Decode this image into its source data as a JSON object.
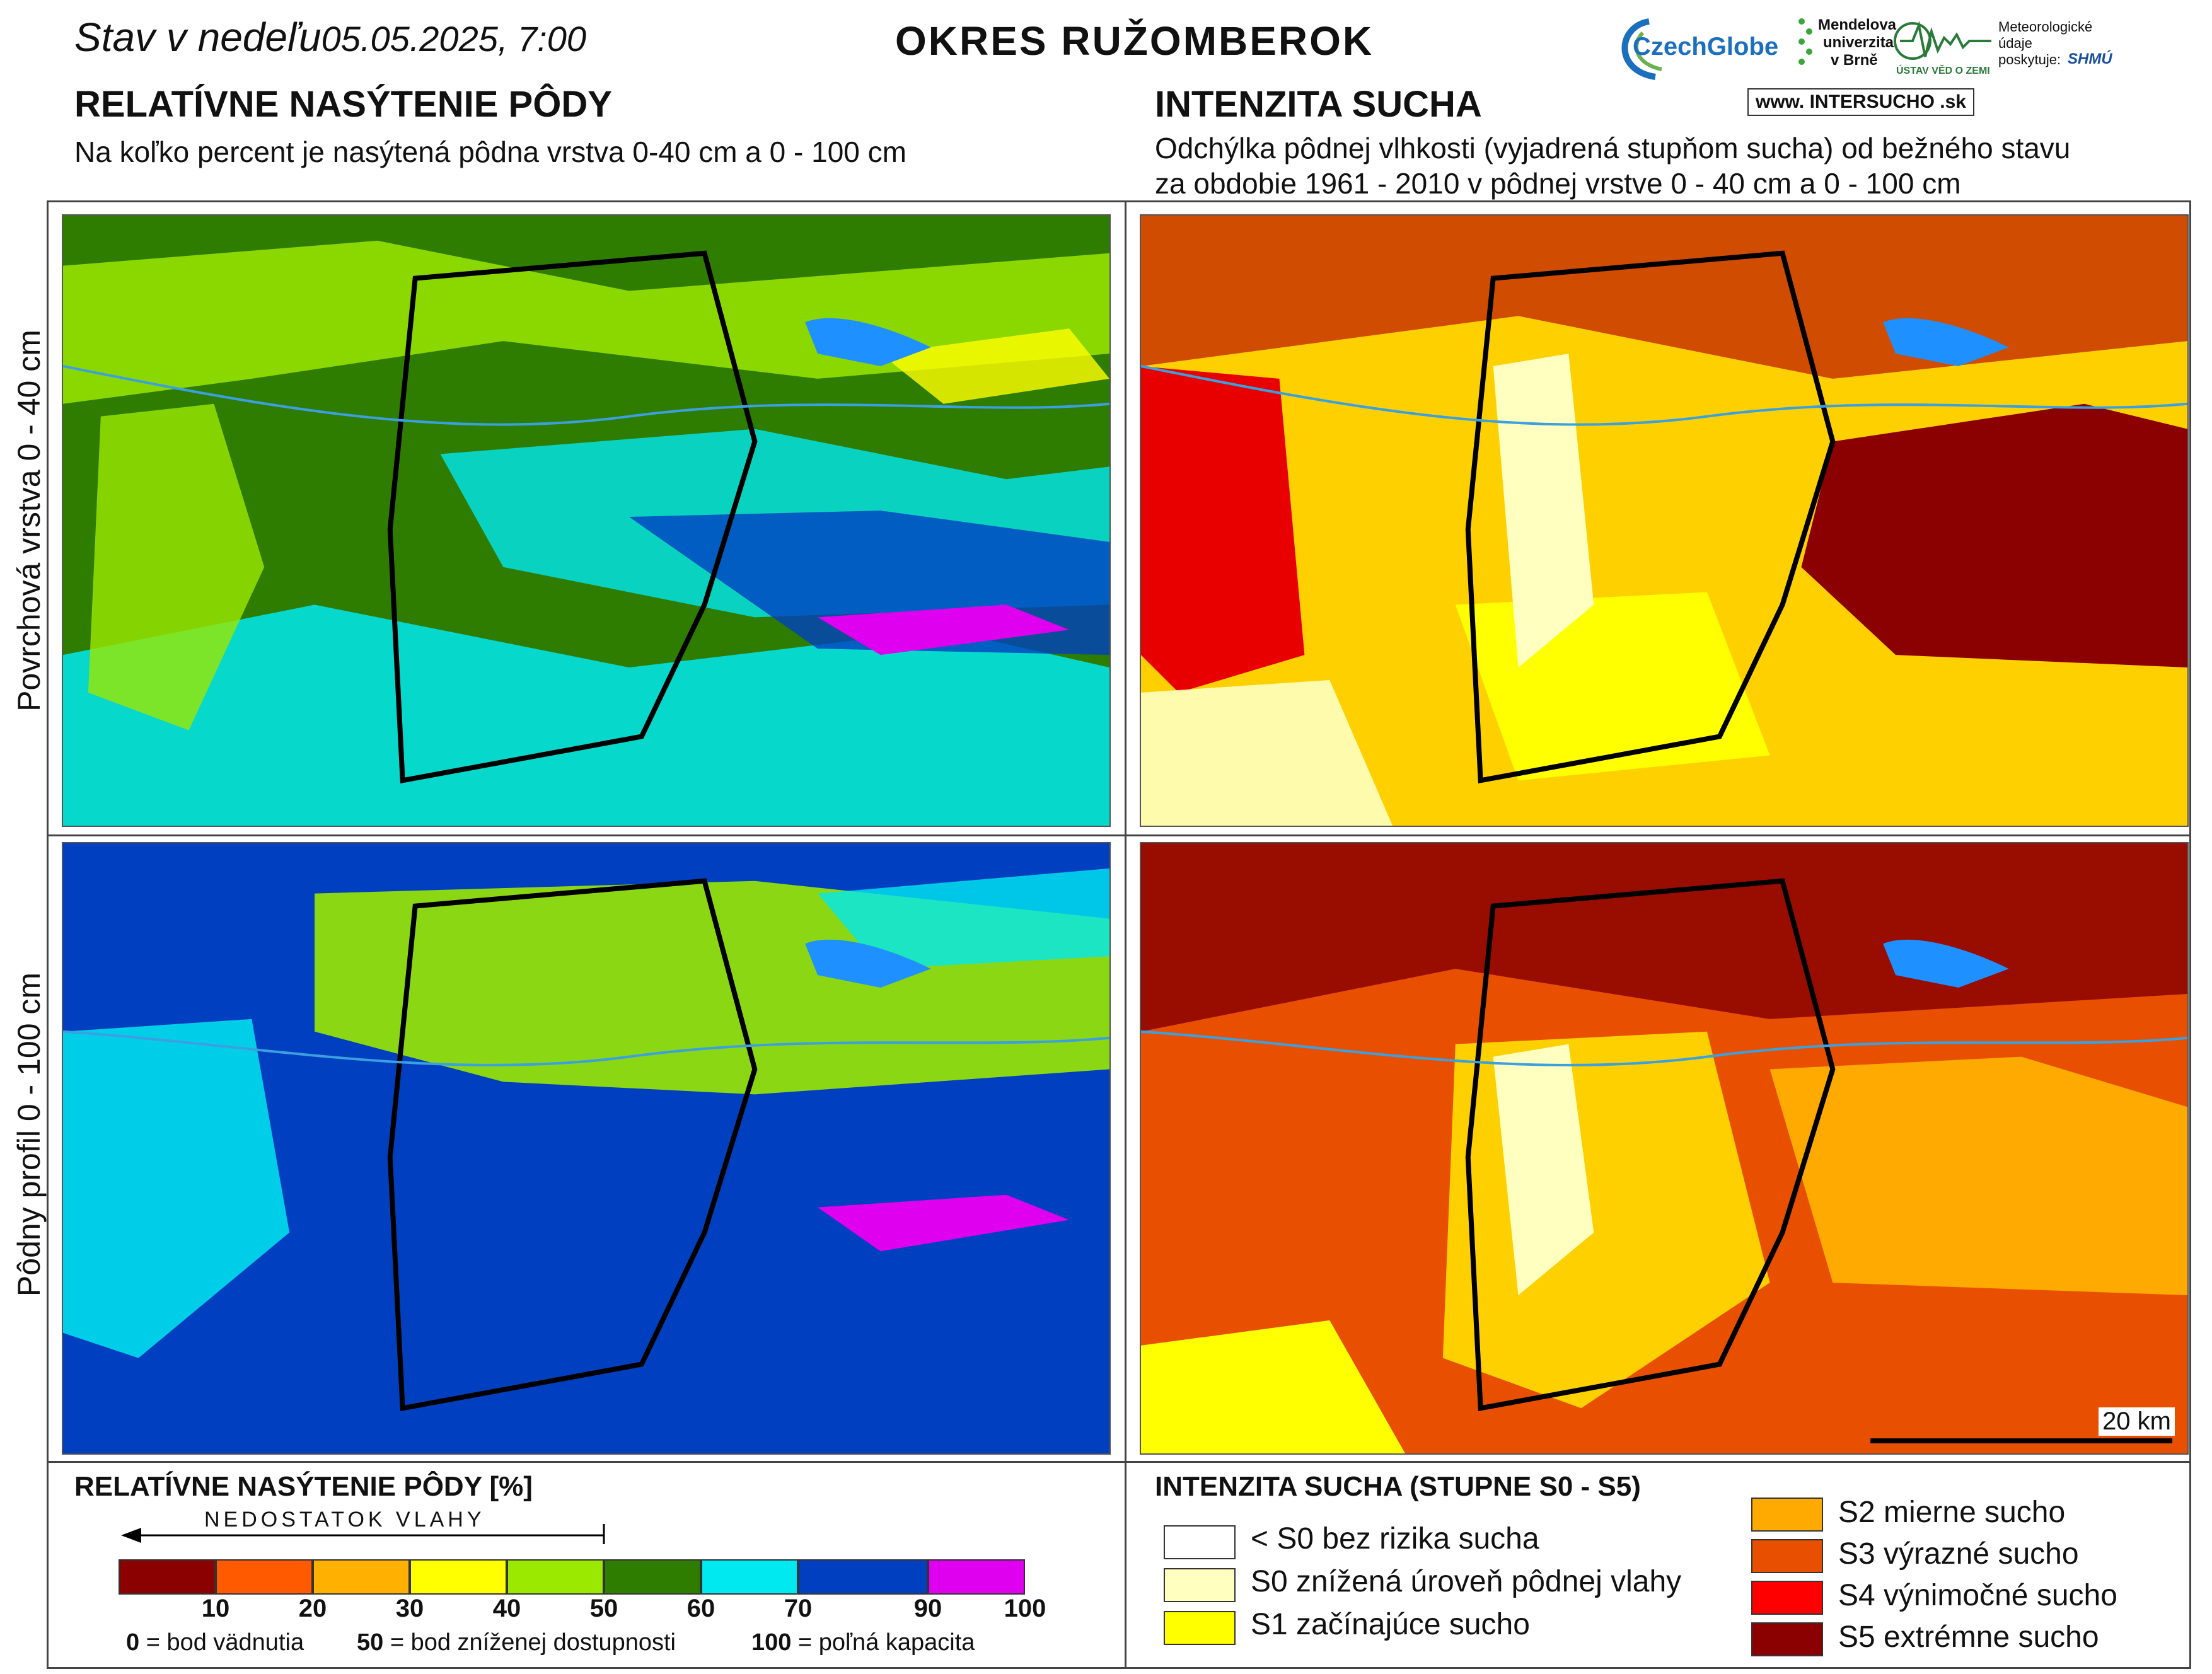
{
  "header": {
    "status_prefix": "Stav v nedeľu",
    "status_date": "05.05.2025, 7:00",
    "district": "OKRES  RUŽOMBEROK"
  },
  "left_panel": {
    "title": "RELATÍVNE NASÝTENIE PÔDY",
    "subtitle": "Na koľko percent je nasýtená pôdna vrstva 0-40 cm a 0 - 100 cm"
  },
  "right_panel": {
    "title": "INTENZITA SUCHA",
    "subtitle_line1": "Odchýlka pôdnej vlhkosti (vyjadrená stupňom sucha) od bežného stavu",
    "subtitle_line2": "za obdobie 1961 - 2010 v pôdnej vrstve 0 - 40 cm a 0 - 100 cm"
  },
  "row_labels": {
    "top": "Povrchová vrstva 0 - 40 cm",
    "bottom": "Pôdny profil 0 - 100 cm"
  },
  "logos": {
    "czechglobe": "CzechGlobe",
    "mendel_line1": "Mendelova",
    "mendel_line2": "univerzita",
    "mendel_line3": "v Brně",
    "uvgz": "ÚSTAV VĚD O ZEMI",
    "meteo_line1": "Meteorologické",
    "meteo_line2": "údaje",
    "meteo_line3": "poskytuje:",
    "shmu": "SHMÚ",
    "intersucho": "www. INTERSUCHO .sk"
  },
  "scale_bar": {
    "label": "20 km"
  },
  "saturation_legend": {
    "title": "RELATÍVNE NASÝTENIE PÔDY [%]",
    "arrow_label": "NEDOSTATOK VLAHY",
    "colors": [
      "#8b0000",
      "#ff5a00",
      "#ffb000",
      "#ffff00",
      "#9be800",
      "#2e7d00",
      "#00e8f0",
      "#0040c0",
      "#e000f0"
    ],
    "ticks": [
      "10",
      "20",
      "30",
      "40",
      "50",
      "60",
      "70",
      "90",
      "100"
    ],
    "def0_value": "0",
    "def0_text": " = bod vädnutia",
    "def50_value": "50",
    "def50_text": " = bod zníženej dostupnosti",
    "def100_value": "100",
    "def100_text": " = poľná kapacita"
  },
  "drought_legend": {
    "title": "INTENZITA SUCHA (STUPNE S0 - S5)",
    "items": [
      {
        "label": "< S0 bez rizika sucha",
        "color": "#ffffff"
      },
      {
        "label": "S0 znížená úroveň pôdnej vlahy",
        "color": "#ffffc0"
      },
      {
        "label": "S1 začínajúce sucho",
        "color": "#ffff00"
      },
      {
        "label": "S2 mierne sucho",
        "color": "#ffaa00"
      },
      {
        "label": "S3 výrazné sucho",
        "color": "#e85000"
      },
      {
        "label": "S4 výnimočné sucho",
        "color": "#ff0000"
      },
      {
        "label": "S5 extrémne sucho",
        "color": "#8b0000"
      }
    ]
  }
}
